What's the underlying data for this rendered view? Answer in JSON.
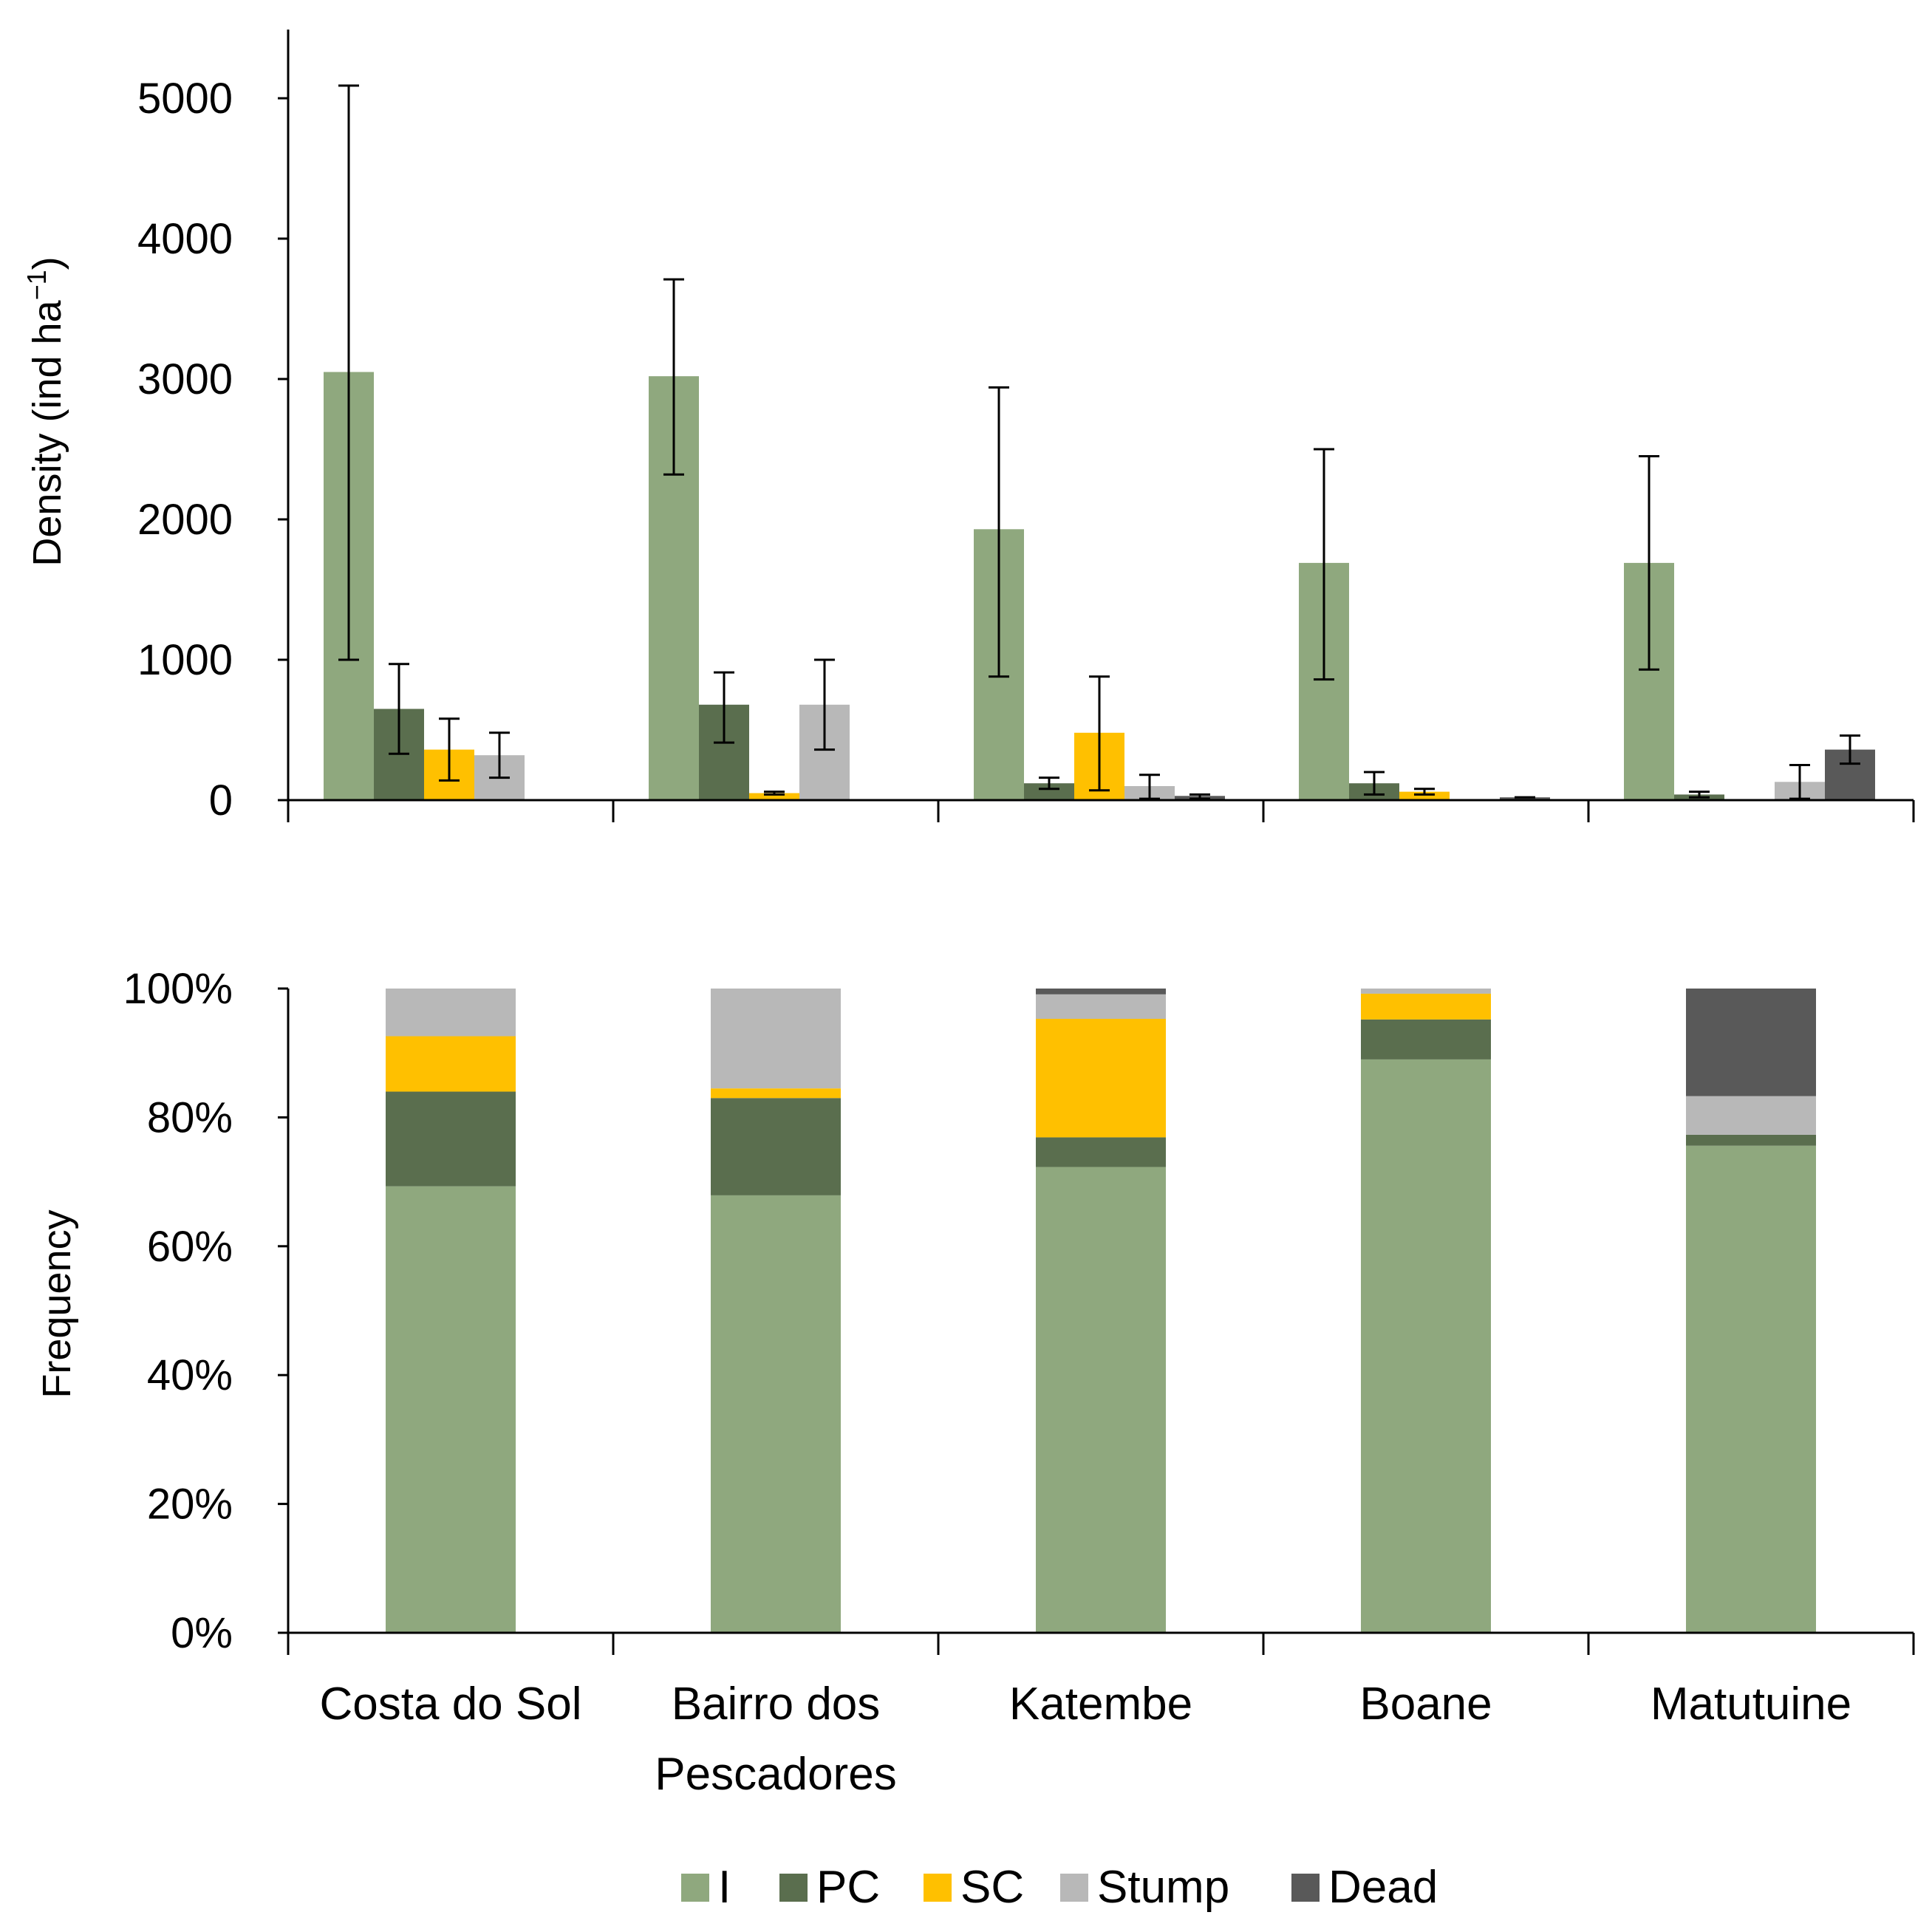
{
  "chart_data": [
    {
      "type": "bar",
      "panel": "top",
      "ylabel": "Density (ind ha",
      "ylabel_superscript": "−1",
      "ylabel_close": ")",
      "ylim": [
        0,
        5000
      ],
      "y_ticks": [
        0,
        1000,
        2000,
        3000,
        4000,
        5000
      ],
      "y_tick_labels": [
        "0",
        "1000",
        "2000",
        "3000",
        "4000",
        "5000"
      ],
      "categories": [
        "Costa do Sol",
        "Bairro dos Pescadores",
        "Katembe",
        "Boane",
        "Matutuine"
      ],
      "error_bars": true,
      "series": [
        {
          "name": "I",
          "values": [
            3050,
            3020,
            1930,
            1690,
            1690
          ],
          "err_low": [
            1000,
            2320,
            880,
            860,
            930
          ],
          "err_high": [
            5090,
            3710,
            2940,
            2500,
            2450
          ]
        },
        {
          "name": "PC",
          "values": [
            650,
            680,
            120,
            120,
            40
          ],
          "err_low": [
            330,
            410,
            80,
            40,
            20
          ],
          "err_high": [
            970,
            910,
            160,
            200,
            60
          ]
        },
        {
          "name": "SC",
          "values": [
            360,
            50,
            480,
            60,
            0
          ],
          "err_low": [
            140,
            40,
            70,
            40,
            null
          ],
          "err_high": [
            580,
            60,
            880,
            80,
            null
          ]
        },
        {
          "name": "Stump",
          "values": [
            320,
            680,
            100,
            0,
            130
          ],
          "err_low": [
            160,
            360,
            10,
            null,
            10
          ],
          "err_high": [
            480,
            1000,
            180,
            null,
            250
          ]
        },
        {
          "name": "Dead",
          "values": [
            0,
            0,
            30,
            20,
            360
          ],
          "err_low": [
            null,
            null,
            10,
            20,
            260
          ],
          "err_high": [
            null,
            null,
            40,
            20,
            460
          ]
        }
      ]
    },
    {
      "type": "bar",
      "stacked": true,
      "panel": "bottom",
      "ylabel": "Frequency",
      "ylim": [
        0,
        100
      ],
      "y_ticks": [
        0,
        20,
        40,
        60,
        80,
        100
      ],
      "y_tick_labels": [
        "0%",
        "20%",
        "40%",
        "60%",
        "80%",
        "100%"
      ],
      "categories": [
        "Costa do Sol",
        "Bairro dos Pescadores",
        "Katembe",
        "Boane",
        "Matutuine"
      ],
      "series": [
        {
          "name": "I",
          "values": [
            69.3,
            67.9,
            72.3,
            89.0,
            75.6
          ]
        },
        {
          "name": "PC",
          "values": [
            14.7,
            15.1,
            4.6,
            6.2,
            1.7
          ]
        },
        {
          "name": "SC",
          "values": [
            8.6,
            1.5,
            18.4,
            4.0,
            0.0
          ]
        },
        {
          "name": "Stump",
          "values": [
            7.4,
            15.5,
            3.8,
            0.8,
            6.0
          ]
        },
        {
          "name": "Dead",
          "values": [
            0.0,
            0.0,
            0.9,
            0.0,
            16.7
          ]
        }
      ]
    }
  ],
  "category_labels": [
    {
      "line1": "Costa do Sol",
      "line2": ""
    },
    {
      "line1": "Bairro dos",
      "line2": "Pescadores"
    },
    {
      "line1": "Katembe",
      "line2": ""
    },
    {
      "line1": "Boane",
      "line2": ""
    },
    {
      "line1": "Matutuine",
      "line2": ""
    }
  ],
  "legend": [
    {
      "label": "I",
      "color": "#8fa87e"
    },
    {
      "label": "PC",
      "color": "#5a6e4e"
    },
    {
      "label": "SC",
      "color": "#ffc000"
    },
    {
      "label": "Stump",
      "color": "#b8b8b8"
    },
    {
      "label": "Dead",
      "color": "#595959"
    }
  ]
}
